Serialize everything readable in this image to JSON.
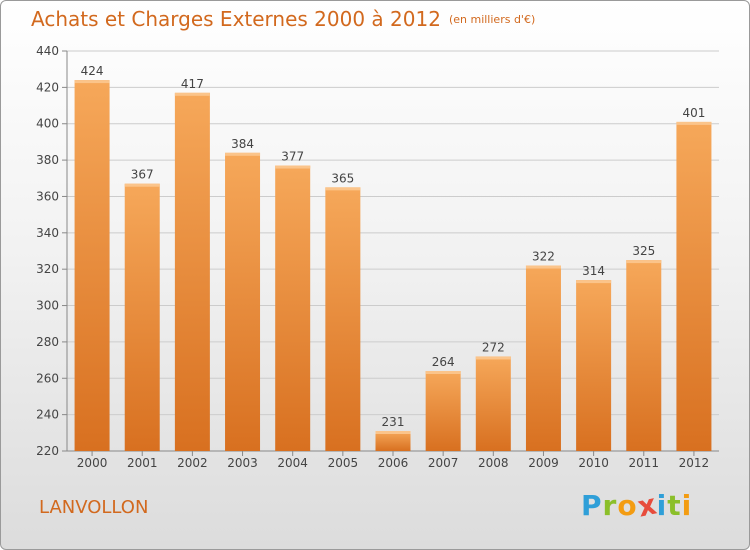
{
  "title": "Achats et Charges Externes 2000 à 2012",
  "title_unit": "(en milliers d'€)",
  "location": "LANVOLLON",
  "logo": {
    "letters": [
      "P",
      "r",
      "o",
      "x",
      "i",
      "t",
      "i"
    ],
    "colors": [
      "#2f9fd8",
      "#8bbf2a",
      "#f39c12",
      "#e74c3c",
      "#2f9fd8",
      "#8bbf2a",
      "#f39c12"
    ]
  },
  "colors": {
    "title": "#d2691e",
    "bar_top": "#f6a85a",
    "bar_bottom": "#d87020",
    "axis_text": "#444444",
    "grid": "#cccccc"
  },
  "chart_data": {
    "type": "bar",
    "title": "Achats et Charges Externes 2000 à 2012",
    "categories": [
      "2000",
      "2001",
      "2002",
      "2003",
      "2004",
      "2005",
      "2006",
      "2007",
      "2008",
      "2009",
      "2010",
      "2011",
      "2012"
    ],
    "values": [
      424,
      367,
      417,
      384,
      377,
      365,
      231,
      264,
      272,
      322,
      314,
      325,
      401
    ],
    "ylim": [
      220,
      440
    ],
    "yticks": [
      220,
      240,
      260,
      280,
      300,
      320,
      340,
      360,
      380,
      400,
      420,
      440
    ],
    "grid": true,
    "xlabel": "",
    "ylabel": ""
  }
}
